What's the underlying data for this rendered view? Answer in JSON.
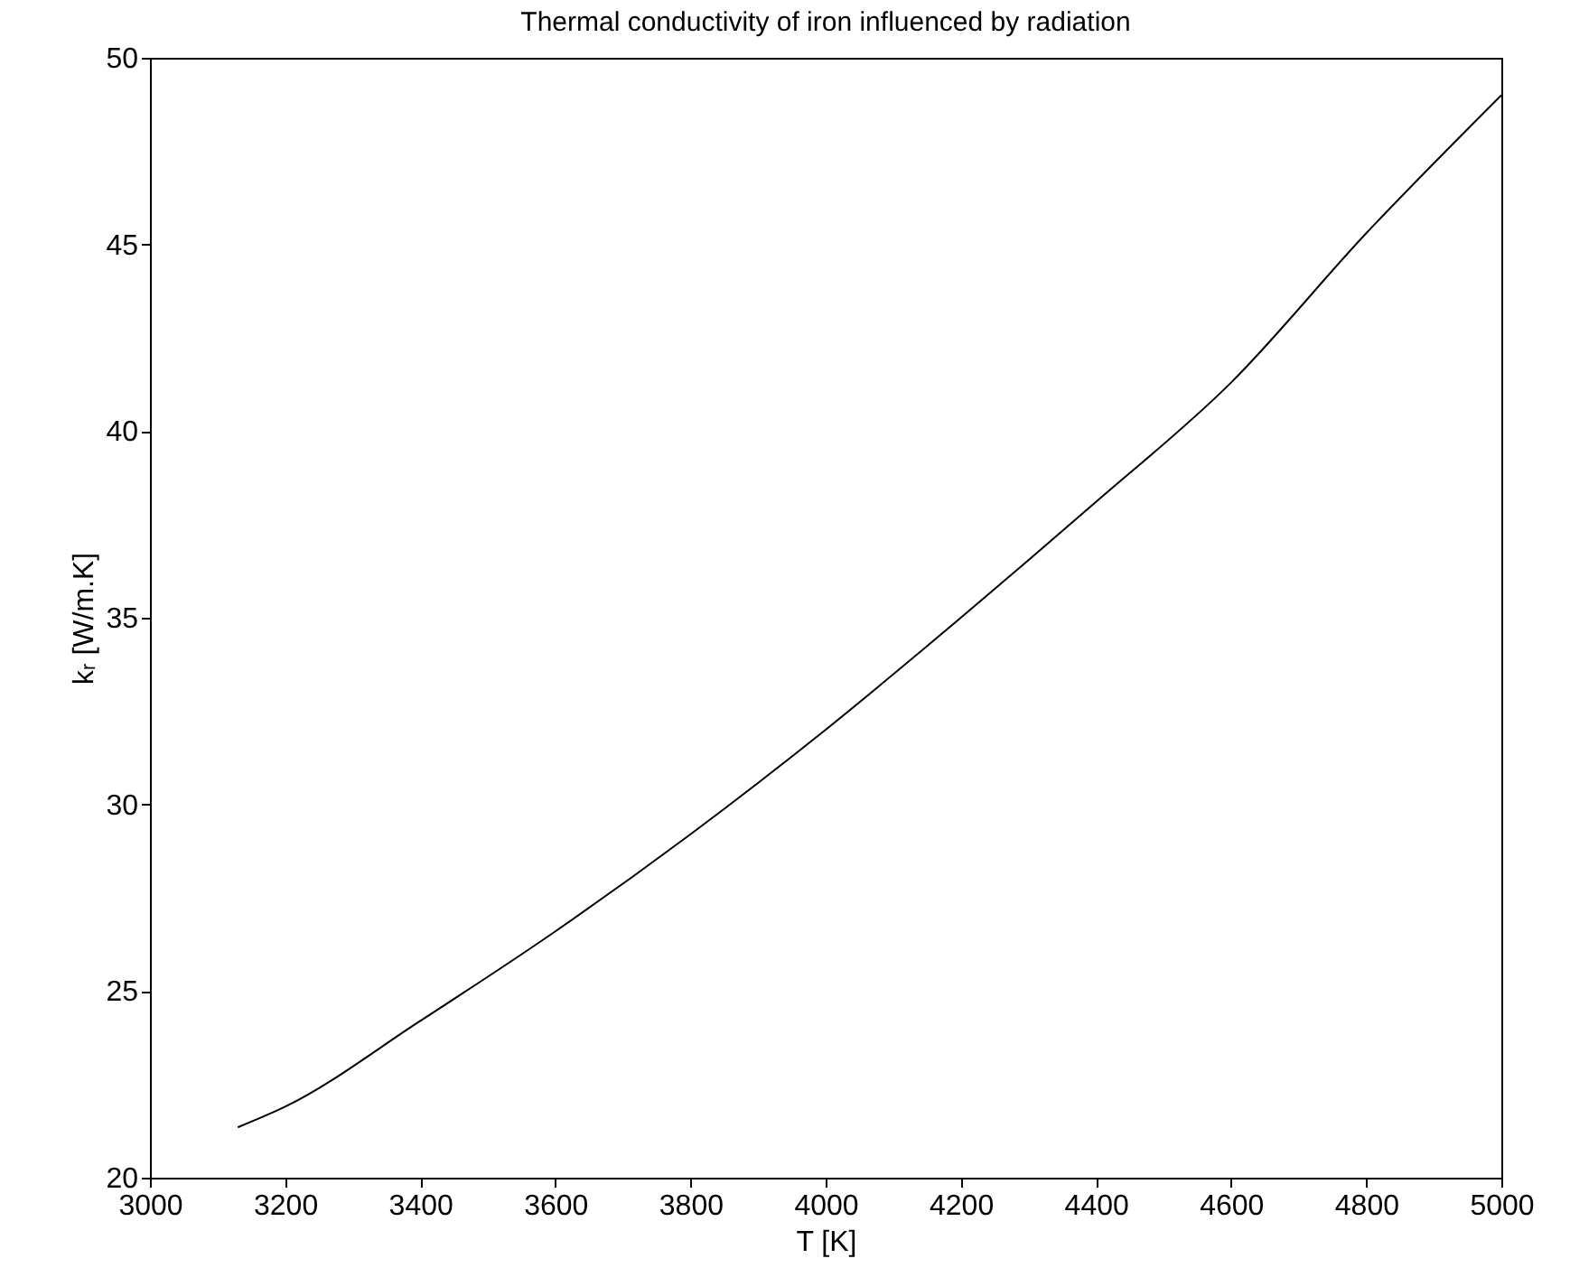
{
  "chart_data": {
    "type": "line",
    "title": "Thermal conductivity of iron influenced by radiation",
    "xlabel": "T [K]",
    "ylabel": "kᵣ [W/m.K]",
    "x": [
      3130,
      3200,
      3400,
      3600,
      3800,
      4000,
      4200,
      4400,
      4600,
      4800,
      5000
    ],
    "series": [
      {
        "color": "#000000",
        "values": [
          21.35,
          21.9,
          24.2,
          26.6,
          29.2,
          32.0,
          35.0,
          38.1,
          41.3,
          45.3,
          49.0
        ]
      }
    ],
    "xlim": [
      3000,
      5000
    ],
    "xticks": [
      3000,
      3200,
      3400,
      3600,
      3800,
      4000,
      4200,
      4400,
      4600,
      4800,
      5000
    ],
    "ylim": [
      20,
      50
    ],
    "yticks": [
      20,
      25,
      30,
      35,
      40,
      45,
      50
    ],
    "grid": false,
    "legend": false,
    "marker": "none",
    "line_style": "solid"
  }
}
